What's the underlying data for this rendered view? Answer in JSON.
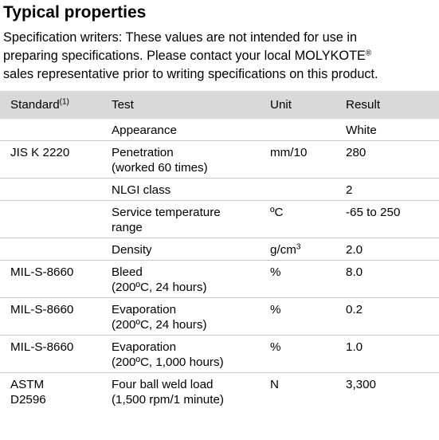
{
  "heading": "Typical properties",
  "intro": {
    "line1": "Specification writers: These values are not intended for use in",
    "line2_pre": "preparing specifications. Please contact your local MOLYKOTE",
    "line2_sup": "®",
    "line3": "sales representative prior to writing specifications on this product."
  },
  "table": {
    "headers": {
      "standard": "Standard",
      "standard_sup": "(1)",
      "test": "Test",
      "unit": "Unit",
      "result": "Result"
    },
    "rows": [
      {
        "standard": "",
        "test": "Appearance",
        "test2": "",
        "unit": "",
        "unit_sup": "",
        "result": "White"
      },
      {
        "standard": "JIS K 2220",
        "test": "Penetration",
        "test2": "(worked 60 times)",
        "unit": "mm/10",
        "unit_sup": "",
        "result": "280"
      },
      {
        "standard": "",
        "test": "NLGI class",
        "test2": "",
        "unit": "",
        "unit_sup": "",
        "result": "2"
      },
      {
        "standard": "",
        "test": "Service temperature",
        "test2": "range",
        "unit": "ºC",
        "unit_sup": "",
        "result": "-65 to 250"
      },
      {
        "standard": "",
        "test": "Density",
        "test2": "",
        "unit": "g/cm",
        "unit_sup": "3",
        "result": "2.0"
      },
      {
        "standard": "MIL-S-8660",
        "test": "Bleed",
        "test2": "(200ºC, 24 hours)",
        "unit": "%",
        "unit_sup": "",
        "result": "8.0"
      },
      {
        "standard": "MIL-S-8660",
        "test": "Evaporation",
        "test2": "(200ºC, 24 hours)",
        "unit": "%",
        "unit_sup": "",
        "result": "0.2"
      },
      {
        "standard": "MIL-S-8660",
        "test": "Evaporation",
        "test2": "(200ºC, 1,000 hours)",
        "unit": "%",
        "unit_sup": "",
        "result": "1.0"
      },
      {
        "standard": "ASTM",
        "standard2": "D2596",
        "test": "Four ball weld load",
        "test2": "(1,500 rpm/1 minute)",
        "unit": "N",
        "unit_sup": "",
        "result": "3,300"
      }
    ]
  }
}
